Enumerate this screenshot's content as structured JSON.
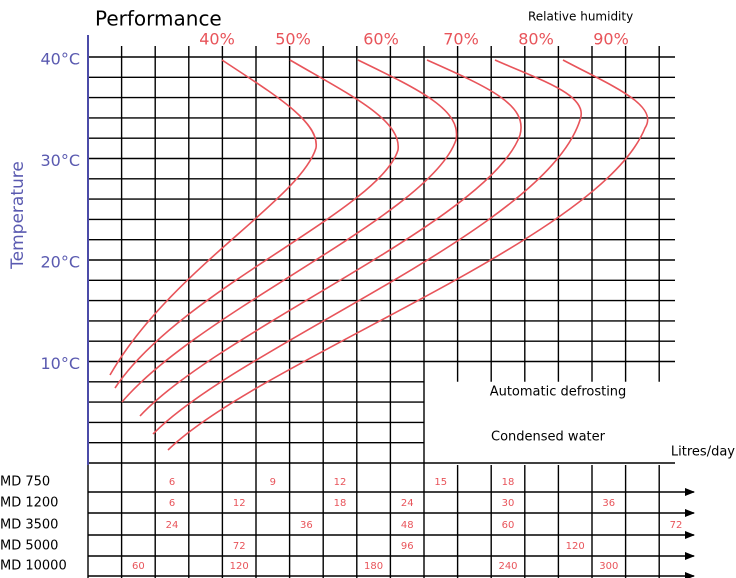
{
  "title": "Performance",
  "humidity_title": "Relative humidity",
  "humidity_labels": [
    "40%",
    "50%",
    "60%",
    "70%",
    "80%",
    "90%"
  ],
  "y_axis_label": "Temperature",
  "y_ticks": [
    "40°C",
    "30°C",
    "20°C",
    "10°C"
  ],
  "notes": [
    "Automatic defrosting",
    "Condensed water"
  ],
  "unit": "Litres/day",
  "models": [
    {
      "name": "MD 750",
      "values": [
        6,
        9,
        12,
        15,
        18
      ]
    },
    {
      "name": "MD 1200",
      "values": [
        6,
        12,
        18,
        24,
        30,
        36
      ]
    },
    {
      "name": "MD 3500",
      "values": [
        24,
        36,
        48,
        60,
        72
      ]
    },
    {
      "name": "MD 5000",
      "values": [
        72,
        96,
        120
      ]
    },
    {
      "name": "MD 10000",
      "values": [
        60,
        120,
        180,
        240,
        300
      ]
    }
  ]
}
